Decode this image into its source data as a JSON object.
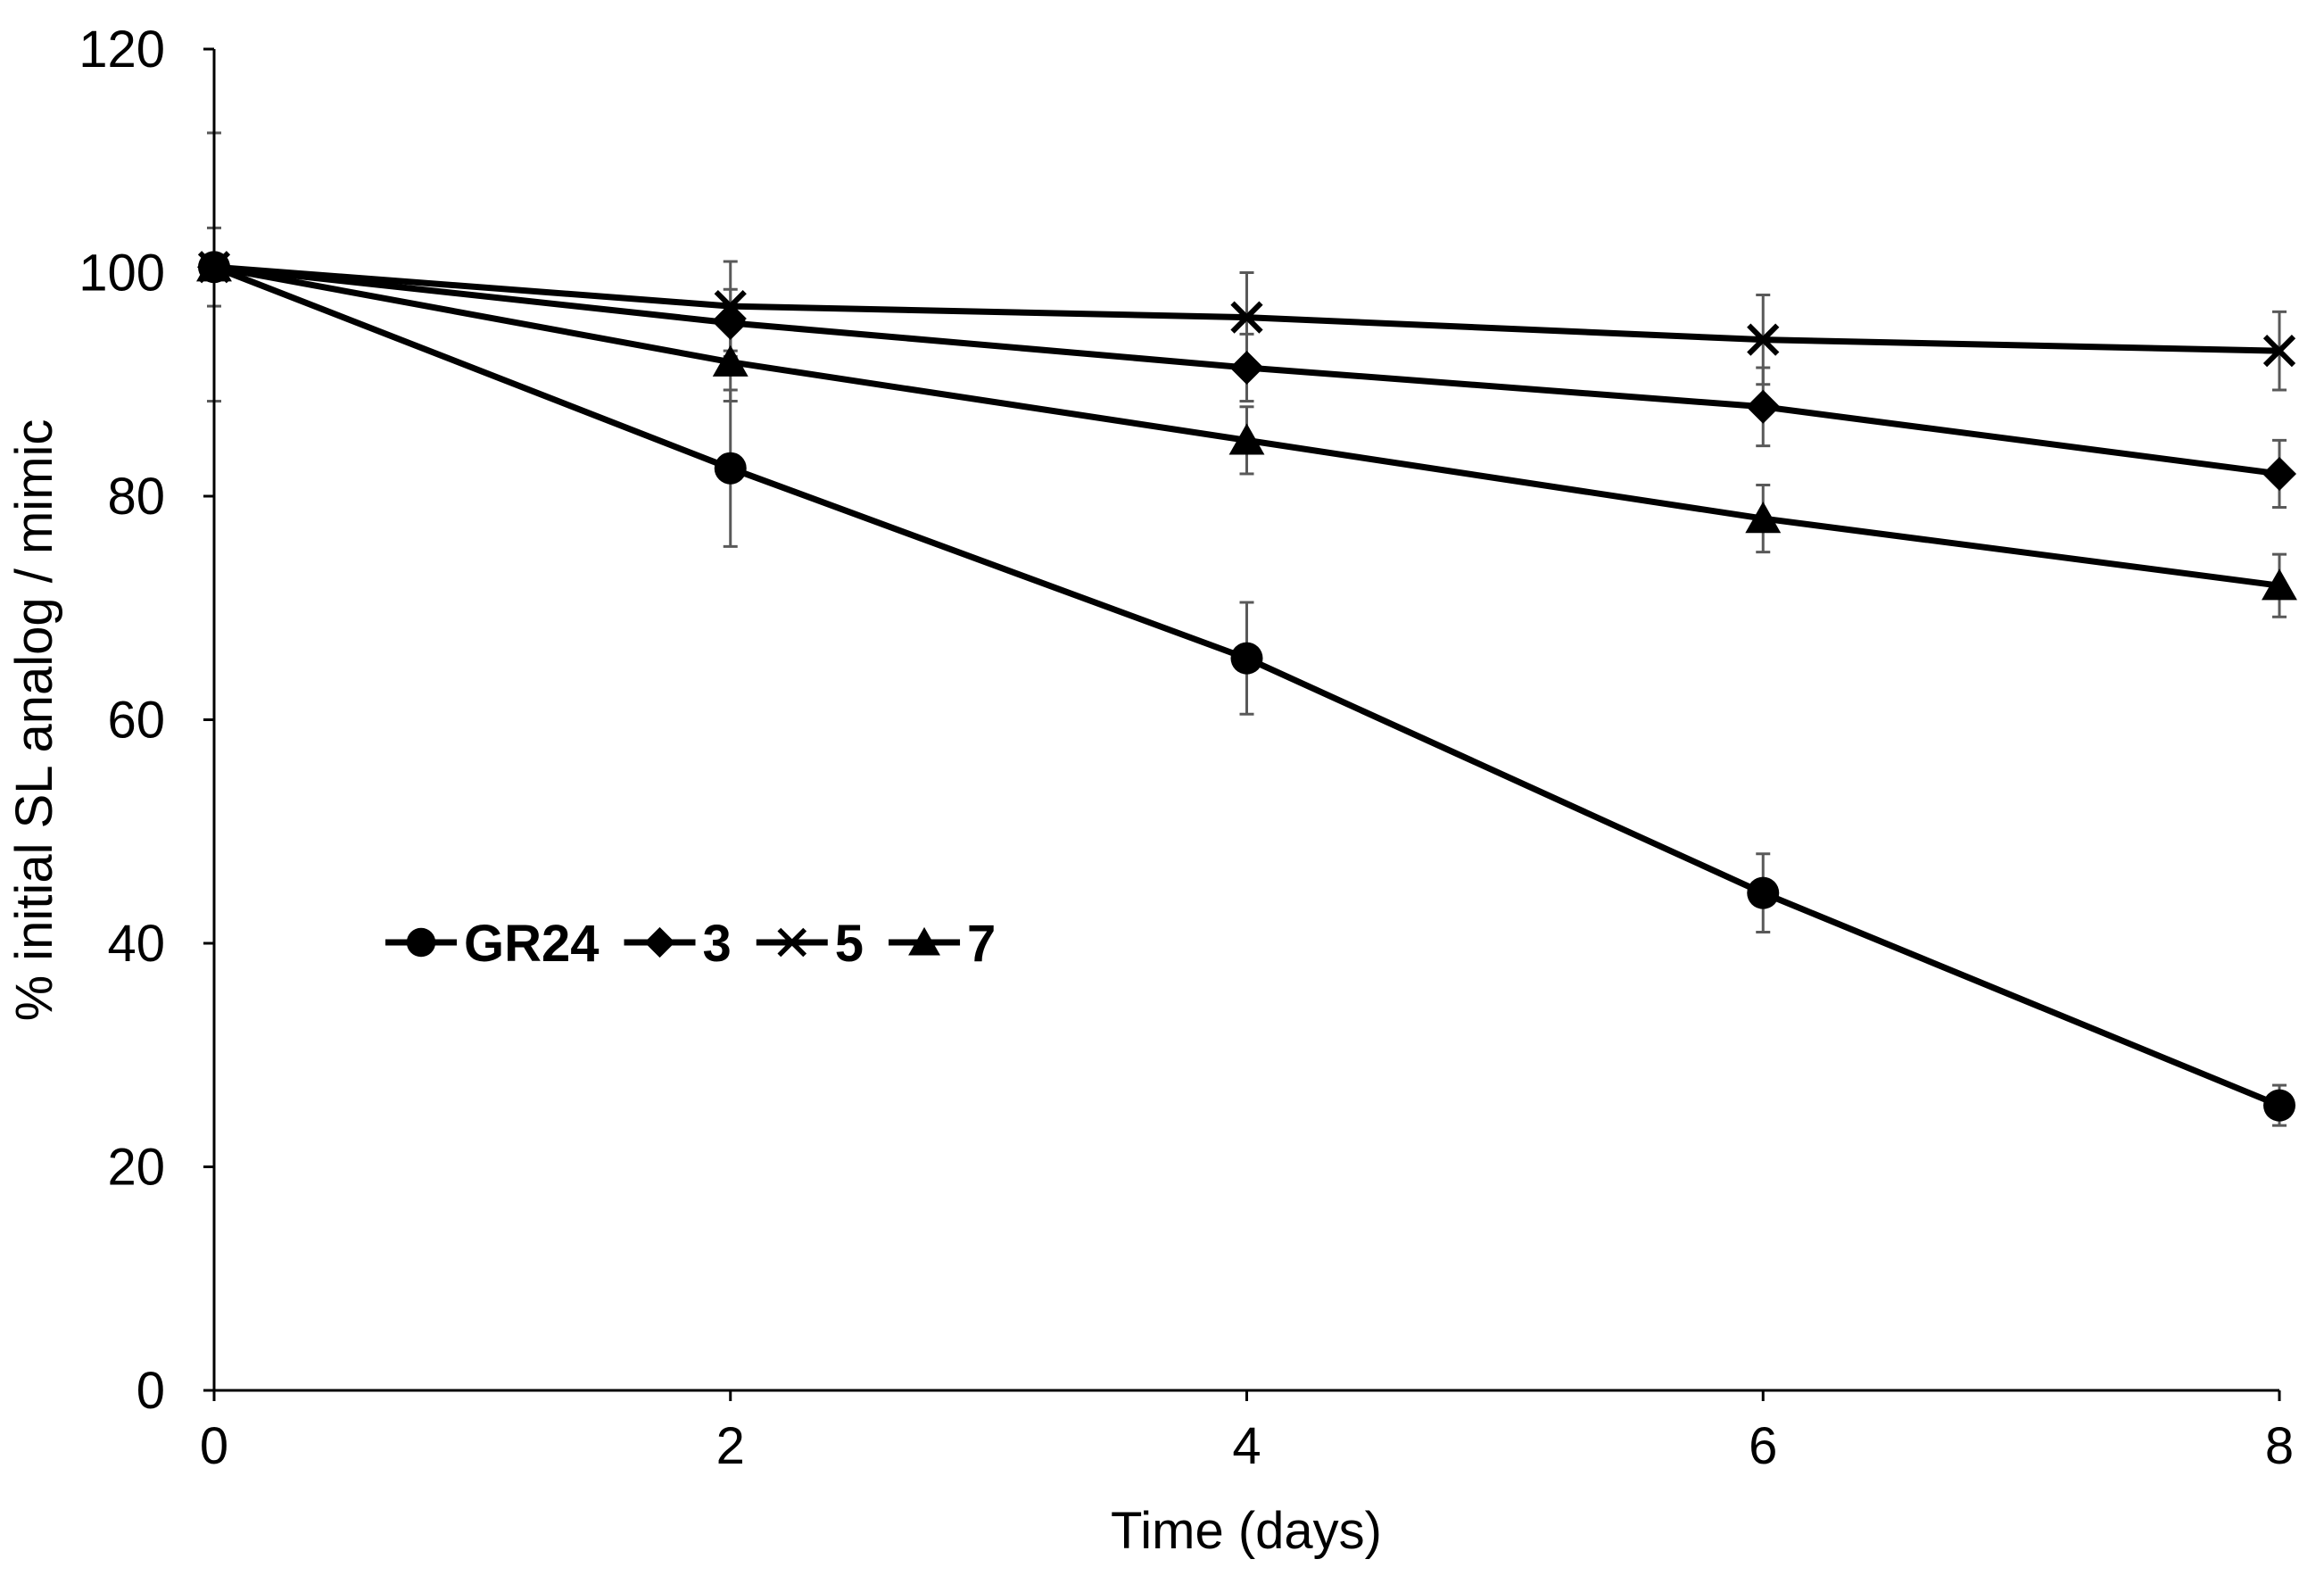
{
  "chart_data": {
    "type": "line",
    "title": "",
    "xlabel": "Time (days)",
    "ylabel": "% initial SL analog / mimic",
    "xlim": [
      0,
      8
    ],
    "ylim": [
      0,
      120
    ],
    "x_ticks": [
      0,
      2,
      4,
      6,
      8
    ],
    "y_ticks": [
      0,
      20,
      40,
      60,
      80,
      100,
      120
    ],
    "grid": false,
    "legend_position": "center-left",
    "colors": {
      "line": "#000000",
      "error_bar": "#595959"
    },
    "x": [
      0,
      2,
      4,
      6,
      8
    ],
    "series": [
      {
        "name": "GR24",
        "marker": "circle",
        "values": [
          100.5,
          82.5,
          65.5,
          44.5,
          25.5
        ],
        "errors": [
          0,
          7.0,
          5.0,
          3.5,
          1.8
        ]
      },
      {
        "name": "3",
        "marker": "diamond",
        "values": [
          100.5,
          95.5,
          91.5,
          88.0,
          82.0
        ],
        "errors": [
          3.5,
          3.0,
          3.0,
          3.5,
          3.0
        ]
      },
      {
        "name": "5",
        "marker": "cross",
        "values": [
          100.5,
          97.0,
          96.0,
          94.0,
          93.0
        ],
        "errors": [
          12.0,
          4.0,
          4.0,
          4.0,
          3.5
        ]
      },
      {
        "name": "7",
        "marker": "triangle",
        "values": [
          100.5,
          92.0,
          85.0,
          78.0,
          72.0
        ],
        "errors": [
          0,
          3.5,
          3.0,
          3.0,
          2.8
        ]
      }
    ]
  }
}
